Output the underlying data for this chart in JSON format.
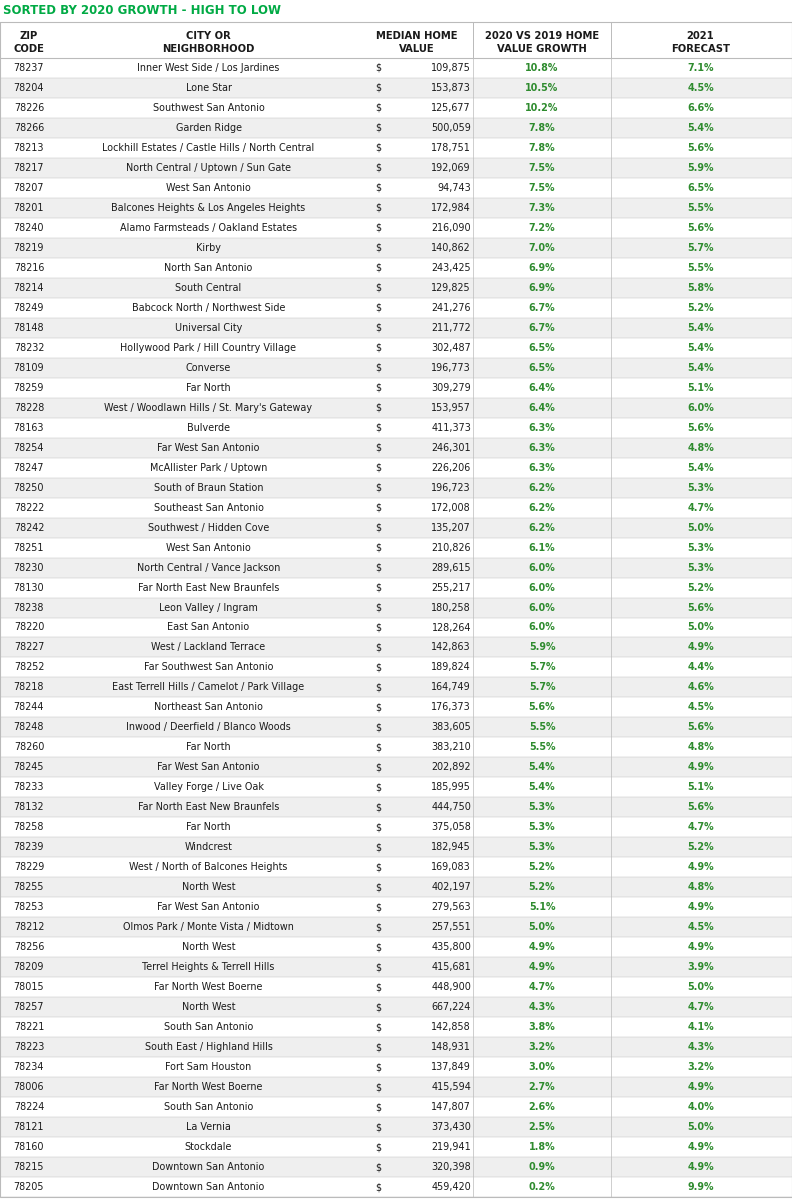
{
  "title": "SORTED BY 2020 GROWTH - HIGH TO LOW",
  "rows": [
    [
      "78237",
      "Inner West Side / Los Jardines",
      "$",
      "109,875",
      "10.8%",
      "7.1%"
    ],
    [
      "78204",
      "Lone Star",
      "$",
      "153,873",
      "10.5%",
      "4.5%"
    ],
    [
      "78226",
      "Southwest San Antonio",
      "$",
      "125,677",
      "10.2%",
      "6.6%"
    ],
    [
      "78266",
      "Garden Ridge",
      "$",
      "500,059",
      "7.8%",
      "5.4%"
    ],
    [
      "78213",
      "Lockhill Estates / Castle Hills / North Central",
      "$",
      "178,751",
      "7.8%",
      "5.6%"
    ],
    [
      "78217",
      "North Central / Uptown / Sun Gate",
      "$",
      "192,069",
      "7.5%",
      "5.9%"
    ],
    [
      "78207",
      "West San Antonio",
      "$",
      "94,743",
      "7.5%",
      "6.5%"
    ],
    [
      "78201",
      "Balcones Heights & Los Angeles Heights",
      "$",
      "172,984",
      "7.3%",
      "5.5%"
    ],
    [
      "78240",
      "Alamo Farmsteads / Oakland Estates",
      "$",
      "216,090",
      "7.2%",
      "5.6%"
    ],
    [
      "78219",
      "Kirby",
      "$",
      "140,862",
      "7.0%",
      "5.7%"
    ],
    [
      "78216",
      "North San Antonio",
      "$",
      "243,425",
      "6.9%",
      "5.5%"
    ],
    [
      "78214",
      "South Central",
      "$",
      "129,825",
      "6.9%",
      "5.8%"
    ],
    [
      "78249",
      "Babcock North / Northwest Side",
      "$",
      "241,276",
      "6.7%",
      "5.2%"
    ],
    [
      "78148",
      "Universal City",
      "$",
      "211,772",
      "6.7%",
      "5.4%"
    ],
    [
      "78232",
      "Hollywood Park / Hill Country Village",
      "$",
      "302,487",
      "6.5%",
      "5.4%"
    ],
    [
      "78109",
      "Converse",
      "$",
      "196,773",
      "6.5%",
      "5.4%"
    ],
    [
      "78259",
      "Far North",
      "$",
      "309,279",
      "6.4%",
      "5.1%"
    ],
    [
      "78228",
      "West / Woodlawn Hills / St. Mary's Gateway",
      "$",
      "153,957",
      "6.4%",
      "6.0%"
    ],
    [
      "78163",
      "Bulverde",
      "$",
      "411,373",
      "6.3%",
      "5.6%"
    ],
    [
      "78254",
      "Far West San Antonio",
      "$",
      "246,301",
      "6.3%",
      "4.8%"
    ],
    [
      "78247",
      "McAllister Park / Uptown",
      "$",
      "226,206",
      "6.3%",
      "5.4%"
    ],
    [
      "78250",
      "South of Braun Station",
      "$",
      "196,723",
      "6.2%",
      "5.3%"
    ],
    [
      "78222",
      "Southeast San Antonio",
      "$",
      "172,008",
      "6.2%",
      "4.7%"
    ],
    [
      "78242",
      "Southwest / Hidden Cove",
      "$",
      "135,207",
      "6.2%",
      "5.0%"
    ],
    [
      "78251",
      "West San Antonio",
      "$",
      "210,826",
      "6.1%",
      "5.3%"
    ],
    [
      "78230",
      "North Central / Vance Jackson",
      "$",
      "289,615",
      "6.0%",
      "5.3%"
    ],
    [
      "78130",
      "Far North East New Braunfels",
      "$",
      "255,217",
      "6.0%",
      "5.2%"
    ],
    [
      "78238",
      "Leon Valley / Ingram",
      "$",
      "180,258",
      "6.0%",
      "5.6%"
    ],
    [
      "78220",
      "East San Antonio",
      "$",
      "128,264",
      "6.0%",
      "5.0%"
    ],
    [
      "78227",
      "West / Lackland Terrace",
      "$",
      "142,863",
      "5.9%",
      "4.9%"
    ],
    [
      "78252",
      "Far Southwest San Antonio",
      "$",
      "189,824",
      "5.7%",
      "4.4%"
    ],
    [
      "78218",
      "East Terrell Hills / Camelot / Park Village",
      "$",
      "164,749",
      "5.7%",
      "4.6%"
    ],
    [
      "78244",
      "Northeast San Antonio",
      "$",
      "176,373",
      "5.6%",
      "4.5%"
    ],
    [
      "78248",
      "Inwood / Deerfield / Blanco Woods",
      "$",
      "383,605",
      "5.5%",
      "5.6%"
    ],
    [
      "78260",
      "Far North",
      "$",
      "383,210",
      "5.5%",
      "4.8%"
    ],
    [
      "78245",
      "Far West San Antonio",
      "$",
      "202,892",
      "5.4%",
      "4.9%"
    ],
    [
      "78233",
      "Valley Forge / Live Oak",
      "$",
      "185,995",
      "5.4%",
      "5.1%"
    ],
    [
      "78132",
      "Far North East New Braunfels",
      "$",
      "444,750",
      "5.3%",
      "5.6%"
    ],
    [
      "78258",
      "Far North",
      "$",
      "375,058",
      "5.3%",
      "4.7%"
    ],
    [
      "78239",
      "Windcrest",
      "$",
      "182,945",
      "5.3%",
      "5.2%"
    ],
    [
      "78229",
      "West / North of Balcones Heights",
      "$",
      "169,083",
      "5.2%",
      "4.9%"
    ],
    [
      "78255",
      "North West",
      "$",
      "402,197",
      "5.2%",
      "4.8%"
    ],
    [
      "78253",
      "Far West San Antonio",
      "$",
      "279,563",
      "5.1%",
      "4.9%"
    ],
    [
      "78212",
      "Olmos Park / Monte Vista / Midtown",
      "$",
      "257,551",
      "5.0%",
      "4.5%"
    ],
    [
      "78256",
      "North West",
      "$",
      "435,800",
      "4.9%",
      "4.9%"
    ],
    [
      "78209",
      "Terrel Heights & Terrell Hills",
      "$",
      "415,681",
      "4.9%",
      "3.9%"
    ],
    [
      "78015",
      "Far North West Boerne",
      "$",
      "448,900",
      "4.7%",
      "5.0%"
    ],
    [
      "78257",
      "North West",
      "$",
      "667,224",
      "4.3%",
      "4.7%"
    ],
    [
      "78221",
      "South San Antonio",
      "$",
      "142,858",
      "3.8%",
      "4.1%"
    ],
    [
      "78223",
      "South East / Highland Hills",
      "$",
      "148,931",
      "3.2%",
      "4.3%"
    ],
    [
      "78234",
      "Fort Sam Houston",
      "$",
      "137,849",
      "3.0%",
      "3.2%"
    ],
    [
      "78006",
      "Far North West Boerne",
      "$",
      "415,594",
      "2.7%",
      "4.9%"
    ],
    [
      "78224",
      "South San Antonio",
      "$",
      "147,807",
      "2.6%",
      "4.0%"
    ],
    [
      "78121",
      "La Vernia",
      "$",
      "373,430",
      "2.5%",
      "5.0%"
    ],
    [
      "78160",
      "Stockdale",
      "$",
      "219,941",
      "1.8%",
      "4.9%"
    ],
    [
      "78215",
      "Downtown San Antonio",
      "$",
      "320,398",
      "0.9%",
      "4.9%"
    ],
    [
      "78205",
      "Downtown San Antonio",
      "$",
      "459,420",
      "0.2%",
      "9.9%"
    ]
  ],
  "title_color": "#00aa44",
  "title_fontsize": 8.5,
  "title_fontweight": "bold",
  "header_line1": [
    "ZIP",
    "CITY OR",
    "MEDIAN HOME",
    "2020 VS 2019 HOME",
    "2021"
  ],
  "header_line2": [
    "CODE",
    "NEIGHBORHOOD",
    "VALUE",
    "VALUE GROWTH",
    "FORECAST"
  ],
  "col_bg_even": "#ffffff",
  "col_bg_odd": "#efefef",
  "green_color": "#2e8b2e",
  "black_color": "#1a1a1a",
  "border_color": "#bbbbbb",
  "header_bg": "#ffffff"
}
